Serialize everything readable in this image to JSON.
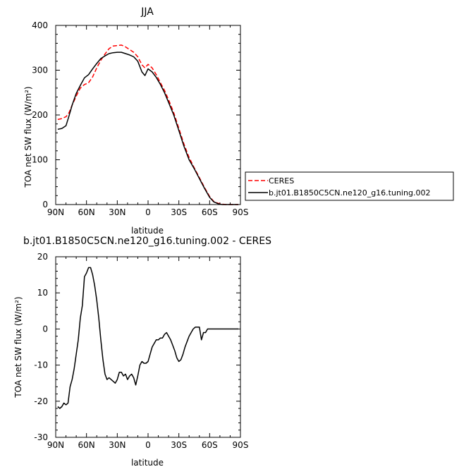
{
  "chart_data": [
    {
      "type": "line",
      "title": "JJA",
      "xlabel": "latitude",
      "ylabel": "TOA net SW flux (W/m²)",
      "xlim": [
        90,
        -90
      ],
      "ylim": [
        0,
        400
      ],
      "xticks": [
        "90N",
        "60N",
        "30N",
        "0",
        "30S",
        "60S",
        "90S"
      ],
      "yticks": [
        "0",
        "100",
        "200",
        "300",
        "400"
      ],
      "legend_position": "right",
      "series": [
        {
          "name": "CERES",
          "color": "#ff0000",
          "style": "dashed",
          "x": [
            88,
            84,
            80,
            77,
            74,
            70,
            66,
            62,
            58,
            54,
            50,
            46,
            42,
            38,
            34,
            30,
            26,
            22,
            18,
            14,
            10,
            6,
            3,
            0,
            -4,
            -8,
            -12,
            -16,
            -20,
            -25,
            -30,
            -35,
            -40,
            -45,
            -50,
            -55,
            -60,
            -64,
            -68,
            -72,
            -76,
            -80,
            -84,
            -88
          ],
          "y": [
            190,
            192,
            196,
            205,
            222,
            242,
            260,
            268,
            272,
            285,
            305,
            322,
            336,
            348,
            354,
            355,
            356,
            352,
            346,
            340,
            330,
            312,
            305,
            313,
            305,
            290,
            272,
            255,
            234,
            205,
            170,
            135,
            105,
            82,
            60,
            38,
            18,
            7,
            3,
            1,
            0,
            0,
            0,
            0
          ]
        },
        {
          "name": "b.jt01.B1850C5CN.ne120_g16.tuning.002",
          "color": "#000000",
          "style": "solid",
          "x": [
            88,
            84,
            80,
            77,
            74,
            70,
            66,
            62,
            58,
            54,
            50,
            46,
            42,
            38,
            34,
            30,
            26,
            22,
            18,
            14,
            10,
            6,
            3,
            0,
            -4,
            -8,
            -12,
            -16,
            -20,
            -25,
            -30,
            -35,
            -40,
            -45,
            -50,
            -55,
            -60,
            -64,
            -68,
            -72,
            -76,
            -80,
            -84,
            -88
          ],
          "y": [
            168,
            170,
            176,
            198,
            222,
            248,
            266,
            283,
            290,
            303,
            315,
            326,
            332,
            337,
            339,
            340,
            340,
            337,
            334,
            330,
            320,
            296,
            288,
            303,
            296,
            284,
            268,
            250,
            228,
            200,
            165,
            130,
            100,
            80,
            58,
            36,
            16,
            6,
            2,
            0,
            0,
            0,
            0,
            0
          ]
        }
      ]
    },
    {
      "type": "line",
      "title": "b.jt01.B1850C5CN.ne120_g16.tuning.002 - CERES",
      "xlabel": "latitude",
      "ylabel": "TOA net SW flux (W/m²)",
      "xlim": [
        90,
        -90
      ],
      "ylim": [
        -30,
        20
      ],
      "xticks": [
        "90N",
        "60N",
        "30N",
        "0",
        "30S",
        "60S",
        "90S"
      ],
      "yticks": [
        "-30",
        "-20",
        "-10",
        "0",
        "10",
        "20"
      ],
      "series": [
        {
          "name": "",
          "color": "#000000",
          "style": "solid",
          "x": [
            88,
            86,
            84,
            82,
            80,
            78,
            76,
            74,
            72,
            70,
            68,
            66,
            64,
            62,
            60,
            58,
            56,
            54,
            52,
            50,
            48,
            46,
            44,
            42,
            40,
            38,
            36,
            34,
            32,
            30,
            28,
            26,
            24,
            22,
            20,
            18,
            16,
            14,
            12,
            10,
            8,
            6,
            4,
            2,
            0,
            -2,
            -4,
            -6,
            -8,
            -10,
            -12,
            -14,
            -16,
            -18,
            -20,
            -22,
            -24,
            -26,
            -28,
            -30,
            -32,
            -34,
            -36,
            -38,
            -40,
            -42,
            -44,
            -46,
            -48,
            -50,
            -52,
            -54,
            -56,
            -58,
            -60,
            -62,
            -64,
            -66,
            -68,
            -70,
            -72,
            -74,
            -76,
            -78,
            -80,
            -82,
            -84,
            -86,
            -88
          ],
          "y": [
            -21.5,
            -22,
            -21.5,
            -20.5,
            -21,
            -20.5,
            -16,
            -14,
            -11,
            -7,
            -3,
            3,
            6.5,
            14.5,
            15.5,
            17,
            17,
            15,
            12,
            8,
            3,
            -3,
            -8.5,
            -12.5,
            -14,
            -13.5,
            -14,
            -14.5,
            -15,
            -14,
            -12,
            -12,
            -13,
            -12.5,
            -14,
            -13,
            -12.5,
            -13.5,
            -15.5,
            -13,
            -10,
            -9,
            -9.5,
            -9.5,
            -9,
            -7,
            -5,
            -4,
            -3,
            -3,
            -2.5,
            -2.5,
            -1.5,
            -1,
            -2,
            -3,
            -4.5,
            -6,
            -8,
            -9,
            -8.5,
            -7,
            -5,
            -3.5,
            -2,
            -1,
            0,
            0.5,
            0.5,
            0.5,
            -3,
            -1,
            -1,
            0,
            0,
            0,
            0,
            0,
            0,
            0,
            0,
            0,
            0,
            0,
            0,
            0,
            0,
            0,
            0
          ]
        }
      ]
    }
  ]
}
